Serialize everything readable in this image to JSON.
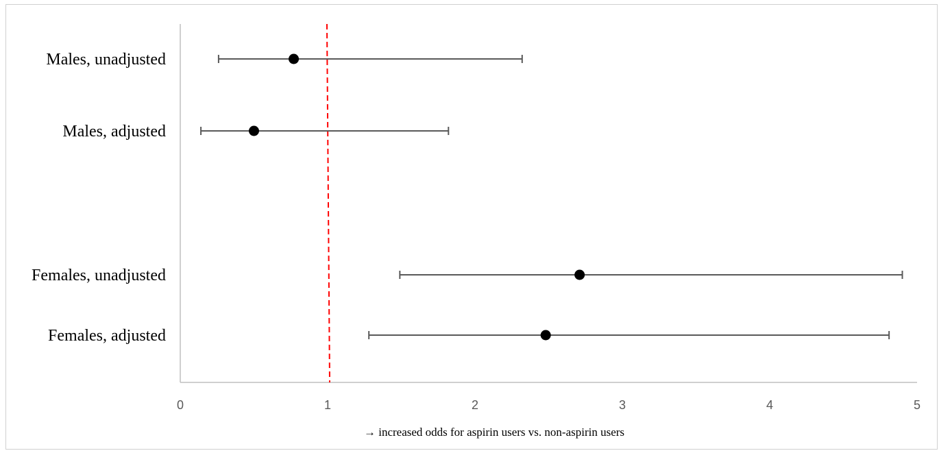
{
  "chart_data": {
    "type": "forest",
    "categories": [
      "Males, unadjusted",
      "Males, adjusted",
      "Females, unadjusted",
      "Females, adjusted"
    ],
    "estimates": [
      0.77,
      0.5,
      2.71,
      2.48
    ],
    "ci_lower": [
      0.26,
      0.14,
      1.49,
      1.28
    ],
    "ci_upper": [
      2.32,
      1.82,
      4.9,
      4.81
    ],
    "xlim": [
      0,
      5
    ],
    "xticks": [
      "0",
      "1",
      "2",
      "3",
      "4",
      "5"
    ],
    "reference_line": 1,
    "xlabel": "→  increased odds for aspirin users vs. non-aspirin users",
    "grid": false,
    "colors": {
      "point": "#000000",
      "whisker": "#595959",
      "reference": "#ff0000",
      "axis": "#bfbfbf"
    }
  }
}
